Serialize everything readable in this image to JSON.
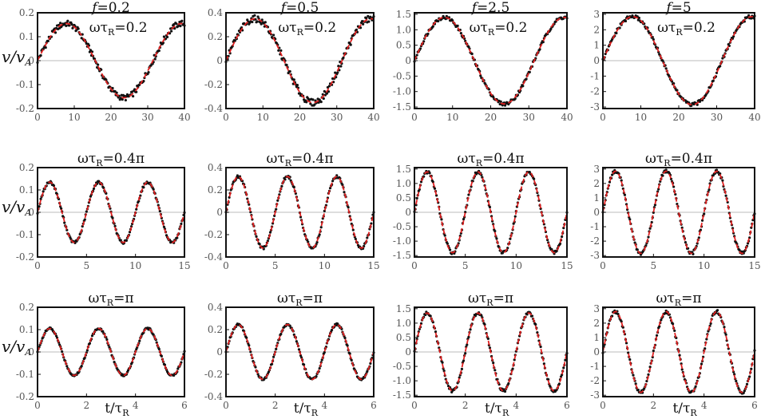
{
  "chart_data": [
    {
      "type": "line",
      "row": 0,
      "col": 0,
      "f_label": "f=0.2",
      "omega_label": "ωτR=0.2",
      "xlim": [
        0,
        40
      ],
      "ylim": [
        -0.2,
        0.2
      ],
      "xticks": [
        "0",
        "10",
        "20",
        "30",
        "40"
      ],
      "yticks": [
        "-0.2",
        "-0.1",
        "0",
        "0.1",
        "0.2"
      ],
      "amplitude": 0.155,
      "omega": 0.2,
      "ylabel": "v/vA",
      "xlabel": "",
      "series": [
        {
          "style": "dots",
          "color": "#111111"
        },
        {
          "style": "dashed",
          "color": "#e02020"
        }
      ]
    },
    {
      "type": "line",
      "row": 0,
      "col": 1,
      "f_label": "f=0.5",
      "omega_label": "ωτR=0.2",
      "xlim": [
        0,
        40
      ],
      "ylim": [
        -0.4,
        0.4
      ],
      "xticks": [
        "0",
        "10",
        "20",
        "30",
        "40"
      ],
      "yticks": [
        "-0.4",
        "-0.2",
        "0",
        "0.2",
        "0.4"
      ],
      "amplitude": 0.35,
      "omega": 0.2,
      "ylabel": "",
      "xlabel": "",
      "series": [
        {
          "style": "dots",
          "color": "#111111"
        },
        {
          "style": "dashed",
          "color": "#e02020"
        }
      ]
    },
    {
      "type": "line",
      "row": 0,
      "col": 2,
      "f_label": "f=2.5",
      "omega_label": "ωτR=0.2",
      "xlim": [
        0,
        40
      ],
      "ylim": [
        -1.55,
        1.55
      ],
      "xticks": [
        "0",
        "10",
        "20",
        "30",
        "40"
      ],
      "yticks": [
        "-1.5",
        "-1.0",
        "-0.5",
        "0",
        "0.5",
        "1.0",
        "1.5"
      ],
      "amplitude": 1.4,
      "omega": 0.2,
      "ylabel": "",
      "xlabel": "",
      "series": [
        {
          "style": "dots",
          "color": "#111111"
        },
        {
          "style": "dashed",
          "color": "#e02020"
        }
      ]
    },
    {
      "type": "line",
      "row": 0,
      "col": 3,
      "f_label": "f=5",
      "omega_label": "ωτR=0.2",
      "xlim": [
        0,
        40
      ],
      "ylim": [
        -3.1,
        3.1
      ],
      "xticks": [
        "0",
        "10",
        "20",
        "30",
        "40"
      ],
      "yticks": [
        "-3",
        "-2",
        "-1",
        "0",
        "1",
        "2",
        "3"
      ],
      "amplitude": 2.85,
      "omega": 0.2,
      "ylabel": "",
      "xlabel": "",
      "series": [
        {
          "style": "dots",
          "color": "#111111"
        },
        {
          "style": "dashed",
          "color": "#e02020"
        }
      ]
    },
    {
      "type": "line",
      "row": 1,
      "col": 0,
      "f_label": "",
      "omega_label": "ωτR=0.4π",
      "xlim": [
        0,
        15
      ],
      "ylim": [
        -0.2,
        0.2
      ],
      "xticks": [
        "0",
        "5",
        "10",
        "15"
      ],
      "yticks": [
        "-0.2",
        "-0.1",
        "0",
        "0.1",
        "0.2"
      ],
      "amplitude": 0.135,
      "omega": 1.2566,
      "ylabel": "v/vA",
      "xlabel": "",
      "series": [
        {
          "style": "dots",
          "color": "#111111"
        },
        {
          "style": "dashed",
          "color": "#e02020"
        }
      ]
    },
    {
      "type": "line",
      "row": 1,
      "col": 1,
      "f_label": "",
      "omega_label": "ωτR=0.4π",
      "xlim": [
        0,
        15
      ],
      "ylim": [
        -0.4,
        0.4
      ],
      "xticks": [
        "0",
        "5",
        "10",
        "15"
      ],
      "yticks": [
        "-0.4",
        "-0.2",
        "0",
        "0.2",
        "0.4"
      ],
      "amplitude": 0.32,
      "omega": 1.2566,
      "ylabel": "",
      "xlabel": "",
      "series": [
        {
          "style": "dots",
          "color": "#111111"
        },
        {
          "style": "dashed",
          "color": "#e02020"
        }
      ]
    },
    {
      "type": "line",
      "row": 1,
      "col": 2,
      "f_label": "",
      "omega_label": "ωτR=0.4π",
      "xlim": [
        0,
        15
      ],
      "ylim": [
        -1.55,
        1.55
      ],
      "xticks": [
        "0",
        "5",
        "10",
        "15"
      ],
      "yticks": [
        "-1.5",
        "-1.0",
        "-0.5",
        "0",
        "0.5",
        "1.0",
        "1.5"
      ],
      "amplitude": 1.4,
      "omega": 1.2566,
      "ylabel": "",
      "xlabel": "",
      "series": [
        {
          "style": "dots",
          "color": "#111111"
        },
        {
          "style": "dashed",
          "color": "#e02020"
        }
      ]
    },
    {
      "type": "line",
      "row": 1,
      "col": 3,
      "f_label": "",
      "omega_label": "ωτR=0.4π",
      "xlim": [
        0,
        15
      ],
      "ylim": [
        -3.1,
        3.1
      ],
      "xticks": [
        "0",
        "5",
        "10",
        "15"
      ],
      "yticks": [
        "-3",
        "-2",
        "-1",
        "0",
        "1",
        "2",
        "3"
      ],
      "amplitude": 2.85,
      "omega": 1.2566,
      "ylabel": "",
      "xlabel": "",
      "series": [
        {
          "style": "dots",
          "color": "#111111"
        },
        {
          "style": "dashed",
          "color": "#e02020"
        }
      ]
    },
    {
      "type": "line",
      "row": 2,
      "col": 0,
      "f_label": "",
      "omega_label": "ωτR=π",
      "xlim": [
        0,
        6
      ],
      "ylim": [
        -0.2,
        0.2
      ],
      "xticks": [
        "0",
        "2",
        "4",
        "6"
      ],
      "yticks": [
        "-0.2",
        "-0.1",
        "0",
        "0.1",
        "0.2"
      ],
      "amplitude": 0.105,
      "omega": 3.1416,
      "ylabel": "v/vA",
      "xlabel": "t/τR",
      "series": [
        {
          "style": "dots",
          "color": "#111111"
        },
        {
          "style": "dashed",
          "color": "#e02020"
        }
      ]
    },
    {
      "type": "line",
      "row": 2,
      "col": 1,
      "f_label": "",
      "omega_label": "ωτR=π",
      "xlim": [
        0,
        6
      ],
      "ylim": [
        -0.4,
        0.4
      ],
      "xticks": [
        "0",
        "2",
        "4",
        "6"
      ],
      "yticks": [
        "-0.4",
        "-0.2",
        "0",
        "0.2",
        "0.4"
      ],
      "amplitude": 0.245,
      "omega": 3.1416,
      "ylabel": "",
      "xlabel": "t/τR",
      "series": [
        {
          "style": "dots",
          "color": "#111111"
        },
        {
          "style": "dashed",
          "color": "#e02020"
        }
      ]
    },
    {
      "type": "line",
      "row": 2,
      "col": 2,
      "f_label": "",
      "omega_label": "ωτR=π",
      "xlim": [
        0,
        6
      ],
      "ylim": [
        -1.55,
        1.55
      ],
      "xticks": [
        "0",
        "2",
        "4",
        "6"
      ],
      "yticks": [
        "-1.5",
        "-1.0",
        "-0.5",
        "0",
        "0.5",
        "1.0",
        "1.5"
      ],
      "amplitude": 1.35,
      "omega": 3.1416,
      "ylabel": "",
      "xlabel": "t/τR",
      "series": [
        {
          "style": "dots",
          "color": "#111111"
        },
        {
          "style": "dashed",
          "color": "#e02020"
        }
      ]
    },
    {
      "type": "line",
      "row": 2,
      "col": 3,
      "f_label": "",
      "omega_label": "ωτR=π",
      "xlim": [
        0,
        6
      ],
      "ylim": [
        -3.1,
        3.1
      ],
      "xticks": [
        "0",
        "2",
        "4",
        "6"
      ],
      "yticks": [
        "-3",
        "-2",
        "-1",
        "0",
        "1",
        "2",
        "3"
      ],
      "amplitude": 2.8,
      "omega": 3.1416,
      "ylabel": "",
      "xlabel": "t/τR",
      "series": [
        {
          "style": "dots",
          "color": "#111111"
        },
        {
          "style": "dashed",
          "color": "#e02020"
        }
      ]
    }
  ]
}
